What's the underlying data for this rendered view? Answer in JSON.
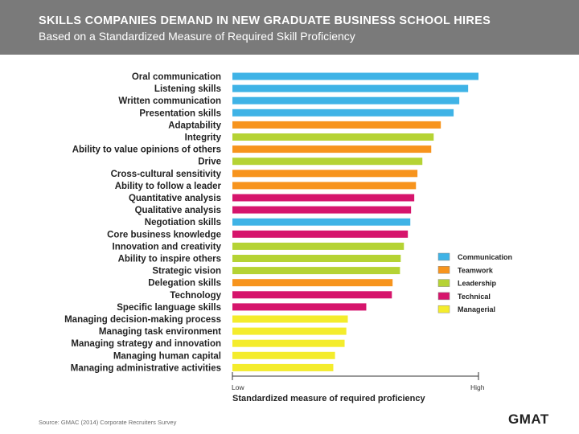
{
  "header": {
    "title": "SKILLS COMPANIES DEMAND IN NEW GRADUATE BUSINESS SCHOOL HIRES",
    "subtitle": "Based on a Standardized Measure of Required Skill Proficiency"
  },
  "colors": {
    "Communication": "#3fb3e6",
    "Teamwork": "#f7941d",
    "Leadership": "#b5d334",
    "Technical": "#d6156c",
    "Managerial": "#f4ec2c",
    "header_bg": "#7a7a7a"
  },
  "chart_data": {
    "type": "bar",
    "orientation": "horizontal",
    "xlabel": "Standardized measure of required proficiency",
    "x_tick_labels": [
      "Low",
      "High"
    ],
    "xlim": [
      0,
      100
    ],
    "legend_position": "right",
    "legend": [
      "Communication",
      "Teamwork",
      "Leadership",
      "Technical",
      "Managerial"
    ],
    "bars": [
      {
        "label": "Oral communication",
        "value": 100,
        "category": "Communication"
      },
      {
        "label": "Listening skills",
        "value": 95.8,
        "category": "Communication"
      },
      {
        "label": "Written communication",
        "value": 92.2,
        "category": "Communication"
      },
      {
        "label": "Presentation skills",
        "value": 89.9,
        "category": "Communication"
      },
      {
        "label": "Adaptability",
        "value": 84.7,
        "category": "Teamwork"
      },
      {
        "label": "Integrity",
        "value": 81.8,
        "category": "Leadership"
      },
      {
        "label": "Ability to value opinions of others",
        "value": 80.8,
        "category": "Teamwork"
      },
      {
        "label": "Drive",
        "value": 77.2,
        "category": "Leadership"
      },
      {
        "label": "Cross-cultural sensitivity",
        "value": 75.2,
        "category": "Teamwork"
      },
      {
        "label": "Ability to follow a leader",
        "value": 74.6,
        "category": "Teamwork"
      },
      {
        "label": "Quantitative analysis",
        "value": 73.9,
        "category": "Technical"
      },
      {
        "label": "Qualitative analysis",
        "value": 72.6,
        "category": "Technical"
      },
      {
        "label": "Negotiation skills",
        "value": 72.3,
        "category": "Communication"
      },
      {
        "label": "Core business knowledge",
        "value": 71.3,
        "category": "Technical"
      },
      {
        "label": "Innovation and creativity",
        "value": 69.7,
        "category": "Leadership"
      },
      {
        "label": "Ability to inspire others",
        "value": 68.4,
        "category": "Leadership"
      },
      {
        "label": "Strategic vision",
        "value": 68.1,
        "category": "Leadership"
      },
      {
        "label": "Delegation skills",
        "value": 65.1,
        "category": "Teamwork"
      },
      {
        "label": "Technology",
        "value": 64.8,
        "category": "Technical"
      },
      {
        "label": "Specific language skills",
        "value": 54.4,
        "category": "Technical"
      },
      {
        "label": "Managing decision-making process",
        "value": 46.9,
        "category": "Managerial"
      },
      {
        "label": "Managing task environment",
        "value": 46.3,
        "category": "Managerial"
      },
      {
        "label": "Managing strategy and innovation",
        "value": 45.6,
        "category": "Managerial"
      },
      {
        "label": "Managing human capital",
        "value": 41.7,
        "category": "Managerial"
      },
      {
        "label": "Managing administrative activities",
        "value": 41.0,
        "category": "Managerial"
      }
    ]
  },
  "footer": {
    "source": "Source: GMAC (2014) Corporate Recruiters Survey",
    "logo_text": "GMAT"
  }
}
